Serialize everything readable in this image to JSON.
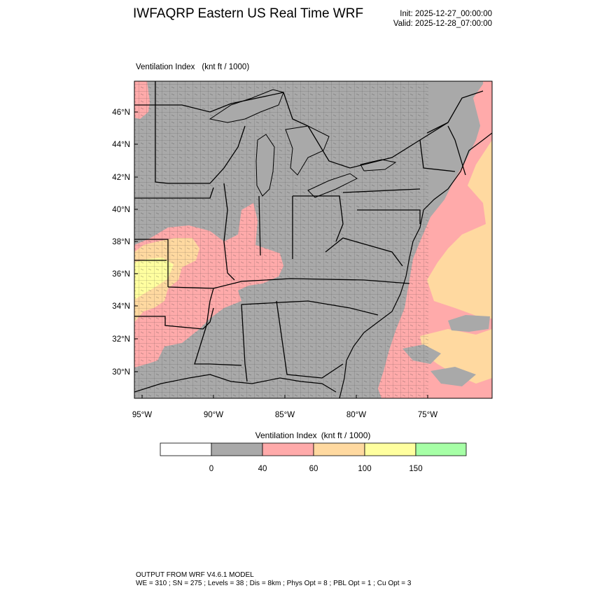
{
  "header": {
    "title": "IWFAQRP Eastern US Real Time WRF",
    "init": "Init: 2025-12-27_00:00:00",
    "valid": "Valid: 2025-12-28_07:00:00"
  },
  "map": {
    "field_name": "Ventilation Index",
    "field_units": "(knt ft / 1000)",
    "lat_ticks": [
      "30°N",
      "32°N",
      "34°N",
      "36°N",
      "38°N",
      "40°N",
      "42°N",
      "44°N",
      "46°N"
    ],
    "lon_ticks": [
      "95°W",
      "90°W",
      "85°W",
      "80°W",
      "75°W"
    ],
    "colors": {
      "land_gray": "#a9a9a9",
      "pink": "#ffaaaa",
      "orange": "#ffd9a0",
      "yellow": "#ffff9f",
      "green": "#a6ffa6",
      "white": "#ffffff"
    }
  },
  "colorbar": {
    "title": "Ventilation Index",
    "units": "(knt ft / 1000)",
    "bins": [
      "#ffffff",
      "#a9a9a9",
      "#ffaaaa",
      "#ffd9a0",
      "#ffff9f",
      "#a6ffa6"
    ],
    "labels": [
      "0",
      "40",
      "60",
      "100",
      "150"
    ]
  },
  "footer": {
    "line1": "OUTPUT FROM WRF V4.6.1 MODEL",
    "line2": "WE = 310 ; SN = 275 ; Levels = 38 ; Dis = 8km ; Phys Opt = 8 ; PBL Opt = 1 ; Cu Opt = 3"
  }
}
